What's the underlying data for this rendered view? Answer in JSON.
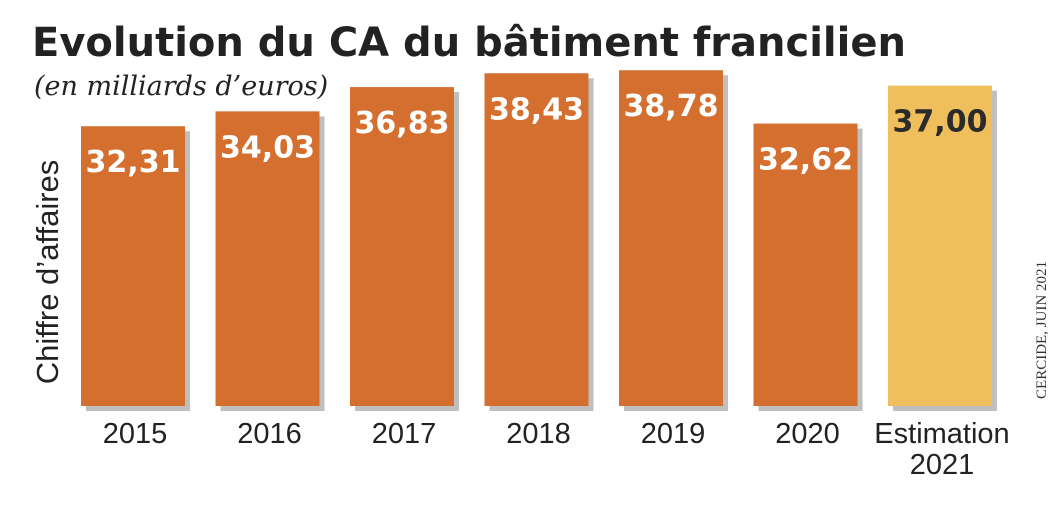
{
  "chart_data": {
    "type": "bar",
    "title": "Evolution du CA du bâtiment francilien",
    "subtitle": "(en milliards d’euros)",
    "ylabel": "Chiffre d’affaires",
    "xlabel": "",
    "categories": [
      "2015",
      "2016",
      "2017",
      "2018",
      "2019",
      "2020",
      "Estimation 2021"
    ],
    "category_lines": [
      [
        "2015"
      ],
      [
        "2016"
      ],
      [
        "2017"
      ],
      [
        "2018"
      ],
      [
        "2019"
      ],
      [
        "2020"
      ],
      [
        "Estimation",
        "2021"
      ]
    ],
    "values": [
      32.31,
      34.03,
      36.83,
      38.43,
      38.78,
      32.62,
      37.0
    ],
    "value_labels": [
      "32,31",
      "34,03",
      "36,83",
      "38,43",
      "38,78",
      "32,62",
      "37,00"
    ],
    "estimate_index": 6,
    "ylim": [
      0,
      41
    ],
    "grid": false,
    "legend": "none",
    "source": "CERCIDE, JUIN 2021",
    "colors": {
      "bar": "#d46f2f",
      "estimate_bar": "#f0bf5d",
      "value_text": "#ffffff",
      "estimate_value_text": "#2b2b2b",
      "text": "#222222"
    }
  }
}
